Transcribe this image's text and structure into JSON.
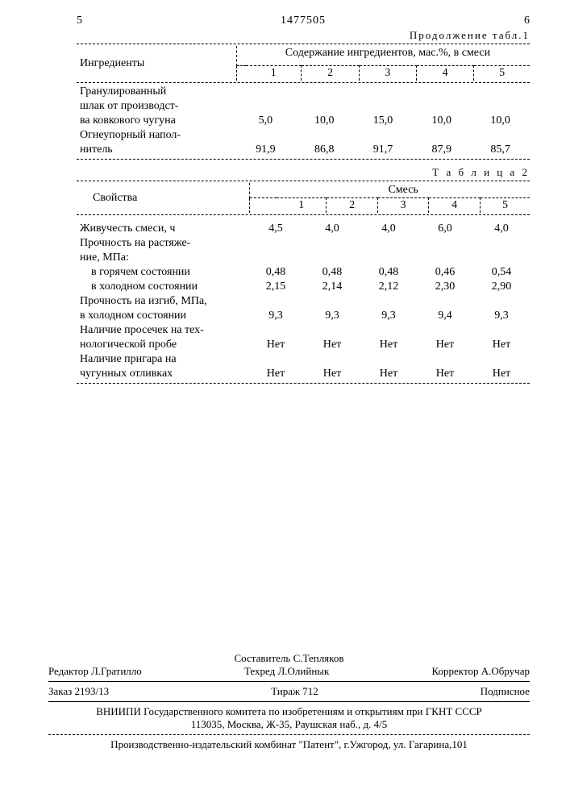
{
  "header": {
    "page_left": "5",
    "patent_no": "1477505",
    "page_right": "6",
    "cont_label": "Продолжение табл.1"
  },
  "table1": {
    "col_ingredients": "Ингредиенты",
    "header_span": "Содержание ингредиентов, мас.%, в смеси",
    "cols": [
      "1",
      "2",
      "3",
      "4",
      "5"
    ],
    "rows": [
      {
        "label_lines": [
          "Гранулированный",
          "шлак от производст-",
          "ва ковкового чугуна"
        ],
        "vals": [
          "5,0",
          "10,0",
          "15,0",
          "10,0",
          "10,0"
        ]
      },
      {
        "label_lines": [
          "Огнеупорный напол-",
          "нитель"
        ],
        "vals": [
          "91,9",
          "86,8",
          "91,7",
          "87,9",
          "85,7"
        ]
      }
    ]
  },
  "table2": {
    "caption": "Т а б л и ц а  2",
    "col_props": "Свойства",
    "header_span": "Смесь",
    "cols": [
      "1",
      "2",
      "3",
      "4",
      "5"
    ],
    "rows": [
      {
        "label": "Живучесть смеси, ч",
        "vals": [
          "4,5",
          "4,0",
          "4,0",
          "6,0",
          "4,0"
        ]
      },
      {
        "label": "Прочность на растяже-",
        "vals": [
          "",
          "",
          "",
          "",
          ""
        ]
      },
      {
        "label": "ние, МПа:",
        "vals": [
          "",
          "",
          "",
          "",
          ""
        ]
      },
      {
        "label": "в горячем состоянии",
        "indent": true,
        "vals": [
          "0,48",
          "0,48",
          "0,48",
          "0,46",
          "0,54"
        ]
      },
      {
        "label": "в холодном состоянии",
        "indent": true,
        "vals": [
          "2,15",
          "2,14",
          "2,12",
          "2,30",
          "2,90"
        ]
      },
      {
        "label": "Прочность на изгиб, МПа,",
        "vals": [
          "",
          "",
          "",
          "",
          ""
        ]
      },
      {
        "label": "в холодном состоянии",
        "vals": [
          "9,3",
          "9,3",
          "9,3",
          "9,4",
          "9,3"
        ]
      },
      {
        "label": "Наличие просечек на тех-",
        "vals": [
          "",
          "",
          "",
          "",
          ""
        ]
      },
      {
        "label": "нологической пробе",
        "vals": [
          "Нет",
          "Нет",
          "Нет",
          "Нет",
          "Нет"
        ]
      },
      {
        "label": "Наличие пригара на",
        "vals": [
          "",
          "",
          "",
          "",
          ""
        ]
      },
      {
        "label": "чугунных отливках",
        "vals": [
          "Нет",
          "Нет",
          "Нет",
          "Нет",
          "Нет"
        ]
      }
    ]
  },
  "footer": {
    "compiler": "Составитель С.Тепляков",
    "editor": "Редактор Л.Гратилло",
    "techred": "Техред Л.Олийнык",
    "corrector": "Корректор А.Обручар",
    "order": "Заказ 2193/13",
    "tirazh": "Тираж 712",
    "subscription": "Подписное",
    "org1": "ВНИИПИ Государственного комитета по изобретениям и открытиям при ГКНТ СССР",
    "org2": "113035, Москва, Ж-35, Раушская наб., д. 4/5",
    "printer": "Производственно-издательский комбинат \"Патент\", г.Ужгород, ул. Гагарина,101"
  }
}
